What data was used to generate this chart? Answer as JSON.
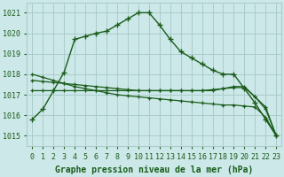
{
  "background_color": "#cce8e8",
  "grid_color": "#aacccc",
  "line_color": "#1a5c1a",
  "xlabel": "Graphe pression niveau de la mer (hPa)",
  "xlabel_fontsize": 7,
  "tick_fontsize": 6,
  "ylim": [
    1014.5,
    1021.5
  ],
  "xlim": [
    -0.5,
    23.5
  ],
  "yticks": [
    1015,
    1016,
    1017,
    1018,
    1019,
    1020,
    1021
  ],
  "xticks": [
    0,
    1,
    2,
    3,
    4,
    5,
    6,
    7,
    8,
    9,
    10,
    11,
    12,
    13,
    14,
    15,
    16,
    17,
    18,
    19,
    20,
    21,
    22,
    23
  ],
  "series": [
    {
      "y": [
        1015.8,
        1016.3,
        1017.2,
        1018.1,
        1019.7,
        1019.85,
        1020.0,
        1020.1,
        1020.4,
        1020.7,
        1021.0,
        1021.0,
        1020.4,
        1019.7,
        1019.1,
        1018.8,
        1018.5,
        1018.2,
        1018.0,
        1018.0,
        1017.3,
        1016.6,
        1015.8,
        1015.0
      ],
      "lw": 1.0,
      "ms": 4
    },
    {
      "y": [
        1017.2,
        1017.2,
        1017.2,
        1017.2,
        1017.2,
        1017.2,
        1017.2,
        1017.2,
        1017.2,
        1017.2,
        1017.2,
        1017.2,
        1017.2,
        1017.2,
        1017.2,
        1017.2,
        1017.2,
        1017.2,
        1017.3,
        1017.4,
        1017.4,
        1016.9,
        1016.3,
        1015.0
      ],
      "lw": 0.9,
      "ms": 3
    },
    {
      "y": [
        1017.7,
        1017.65,
        1017.6,
        1017.55,
        1017.5,
        1017.45,
        1017.4,
        1017.35,
        1017.3,
        1017.25,
        1017.2,
        1017.2,
        1017.2,
        1017.2,
        1017.2,
        1017.2,
        1017.2,
        1017.25,
        1017.3,
        1017.35,
        1017.35,
        1016.9,
        1016.4,
        1015.0
      ],
      "lw": 0.9,
      "ms": 3
    },
    {
      "y": [
        1018.0,
        1017.85,
        1017.7,
        1017.55,
        1017.4,
        1017.3,
        1017.2,
        1017.1,
        1017.0,
        1016.95,
        1016.9,
        1016.85,
        1016.8,
        1016.75,
        1016.7,
        1016.65,
        1016.6,
        1016.55,
        1016.5,
        1016.5,
        1016.45,
        1016.4,
        1015.9,
        1015.0
      ],
      "lw": 0.9,
      "ms": 3
    }
  ]
}
